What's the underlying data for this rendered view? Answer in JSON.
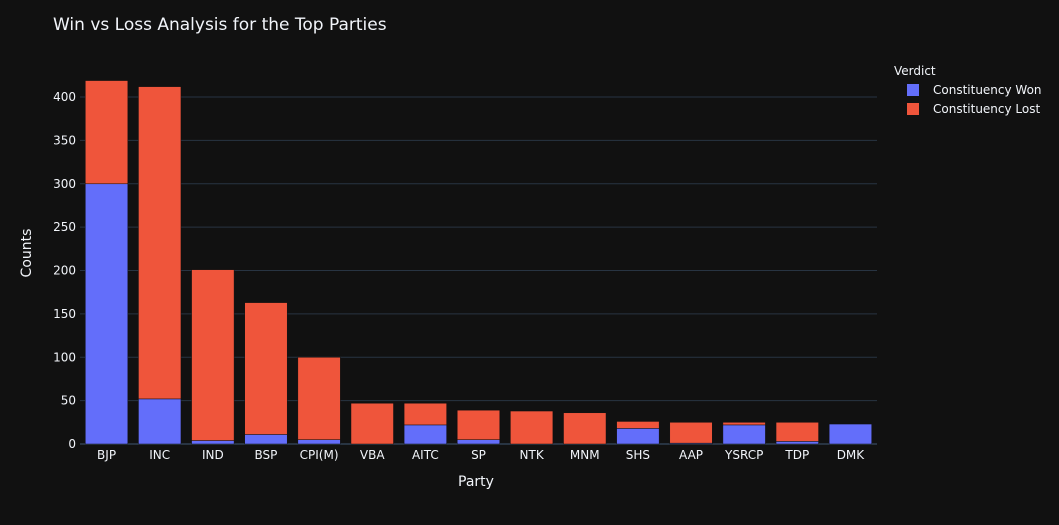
{
  "chart_data": {
    "type": "bar",
    "barmode": "stack",
    "title": "Win vs Loss Analysis for the Top Parties",
    "xlabel": "Party",
    "ylabel": "Counts",
    "ylim": [
      0,
      420
    ],
    "yticks": [
      0,
      50,
      100,
      150,
      200,
      250,
      300,
      350,
      400
    ],
    "grid": true,
    "legend_title": "Verdict",
    "legend_position": "top-right",
    "categories": [
      "BJP",
      "INC",
      "IND",
      "BSP",
      "CPI(M)",
      "VBA",
      "AITC",
      "SP",
      "NTK",
      "MNM",
      "SHS",
      "AAP",
      "YSRCP",
      "TDP",
      "DMK"
    ],
    "series": [
      {
        "name": "Constituency Won",
        "color": "#636efa",
        "values": [
          300,
          52,
          4,
          11,
          5,
          0,
          22,
          5,
          0,
          0,
          18,
          1,
          22,
          3,
          23
        ]
      },
      {
        "name": "Constituency Lost",
        "color": "#ef553b",
        "values": [
          119,
          360,
          197,
          152,
          95,
          47,
          25,
          34,
          38,
          36,
          8,
          24,
          3,
          22,
          0
        ]
      }
    ]
  }
}
